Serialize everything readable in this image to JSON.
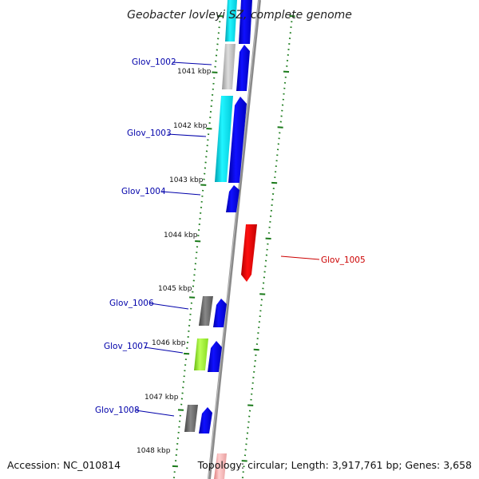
{
  "title": "Geobacter lovleyi SZ, complete genome",
  "accession": "Accession: NC_010814",
  "topology": "Topology: circular; Length: 3,917,761 bp; Genes: 3,658",
  "colors": {
    "label_forward": "#0000aa",
    "label_reverse": "#cc0000",
    "tick": "#1a7a1a",
    "backbone": "#888888",
    "blue": "#0000ee",
    "red": "#ee0000",
    "cyan": "#00e5ee",
    "gray": "#666666",
    "lightgray": "#bbbbbb",
    "lime": "#99ee33"
  },
  "kbp_labels": [
    "1041 kbp",
    "1042 kbp",
    "1043 kbp",
    "1044 kbp",
    "1045 kbp",
    "1046 kbp",
    "1047 kbp",
    "1048 kbp"
  ],
  "genes": [
    {
      "name": "Glov_1002",
      "strand": "+"
    },
    {
      "name": "Glov_1003",
      "strand": "+"
    },
    {
      "name": "Glov_1004",
      "strand": "+"
    },
    {
      "name": "Glov_1005",
      "strand": "-"
    },
    {
      "name": "Glov_1006",
      "strand": "+"
    },
    {
      "name": "Glov_1007",
      "strand": "+"
    },
    {
      "name": "Glov_1008",
      "strand": "+"
    }
  ]
}
